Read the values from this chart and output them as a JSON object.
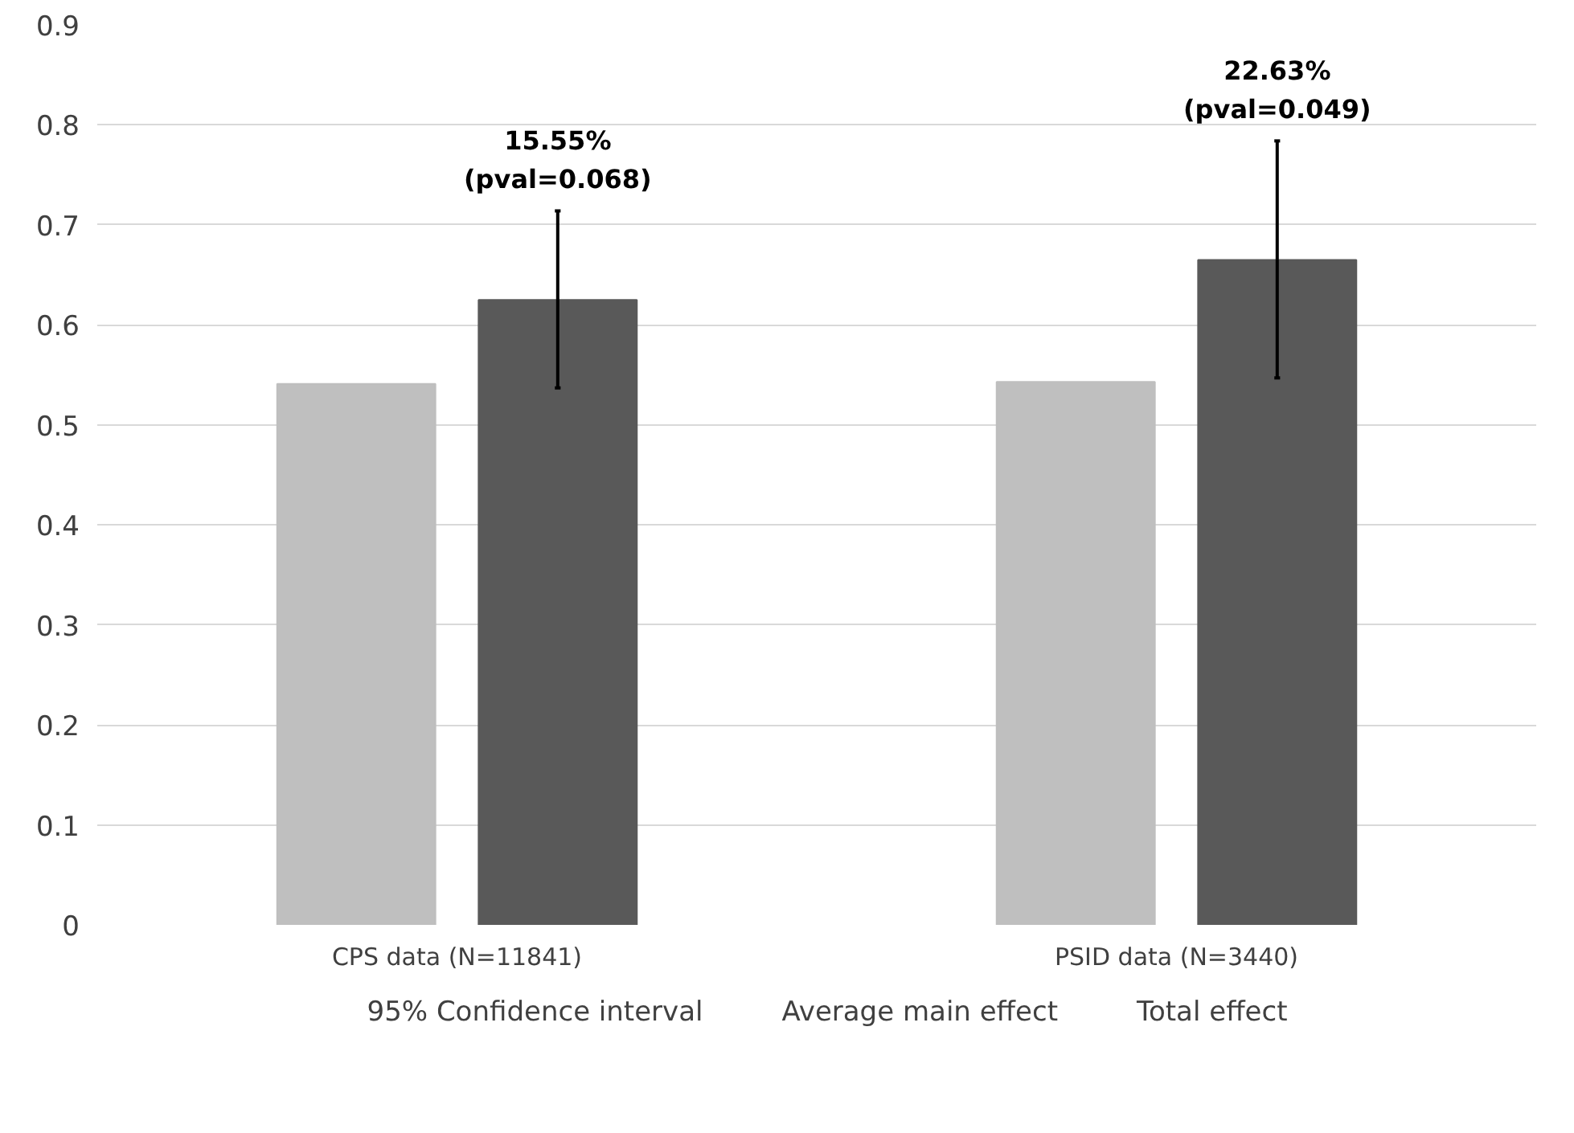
{
  "chart_data": {
    "type": "bar",
    "categories": [
      "CPS data (N=11841)",
      "PSID data (N=3440)"
    ],
    "series": [
      {
        "name": "Average main effect",
        "color": "#bfbfbf",
        "values": [
          0.541,
          0.543
        ]
      },
      {
        "name": "Total effect",
        "color": "#595959",
        "values": [
          0.625,
          0.665
        ],
        "errors": [
          [
            0.537,
            0.714
          ],
          [
            0.547,
            0.784
          ]
        ]
      }
    ],
    "ylim": [
      0,
      0.9
    ],
    "yticks": [
      0,
      0.1,
      0.2,
      0.3,
      0.4,
      0.5,
      0.6,
      0.7,
      0.8,
      0.9
    ],
    "grid": "y",
    "legend": "bottom",
    "annotations": [
      "15.55%",
      "(pval=0.068)",
      "22.63%",
      "(pval=0.049)",
      "95% Confidence interval"
    ]
  }
}
